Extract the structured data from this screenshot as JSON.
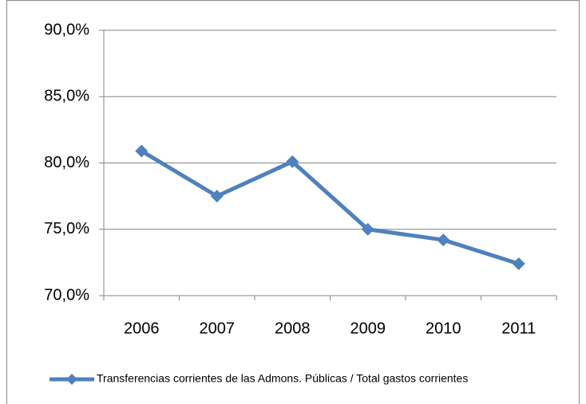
{
  "chart_data": {
    "type": "line",
    "categories": [
      "2006",
      "2007",
      "2008",
      "2009",
      "2010",
      "2011"
    ],
    "series": [
      {
        "name": "Transferencias corrientes de las Admons. Públicas / Total gastos corrientes",
        "color": "#4f81bd",
        "values": [
          80.9,
          77.5,
          80.1,
          75.0,
          74.2,
          72.4
        ]
      }
    ],
    "ylim": [
      70,
      90
    ],
    "yticks": [
      {
        "value": 70,
        "label": "70,0%"
      },
      {
        "value": 75,
        "label": "75,0%"
      },
      {
        "value": 80,
        "label": "80,0%"
      },
      {
        "value": 85,
        "label": "85,0%"
      },
      {
        "value": 90,
        "label": "90,0%"
      }
    ],
    "grid": true,
    "legend": "bottom"
  }
}
